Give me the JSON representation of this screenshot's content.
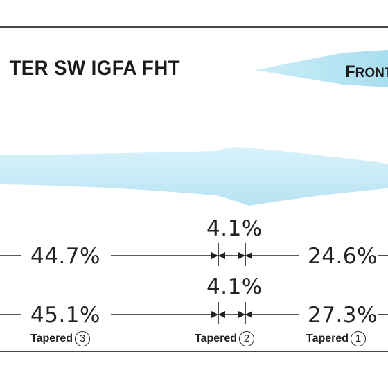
{
  "title": "TER SW IGFA FHT",
  "front_label": {
    "first": "F",
    "rest": "RONT"
  },
  "row1": {
    "left_pct": "44.7%",
    "mid_pct": "4.1%",
    "right_pct": "24.6%"
  },
  "row2": {
    "left_pct": "45.1%",
    "mid_pct": "4.1%",
    "right_pct": "27.3%"
  },
  "tapers": [
    {
      "label": "Tapered",
      "num": "3"
    },
    {
      "label": "Tapered",
      "num": "2"
    },
    {
      "label": "Tapered",
      "num": "1"
    }
  ],
  "colors": {
    "line_fill": "#c6ebf7",
    "front_fill": "#b3e4f3",
    "border": "#4a4646",
    "text": "#222222"
  }
}
